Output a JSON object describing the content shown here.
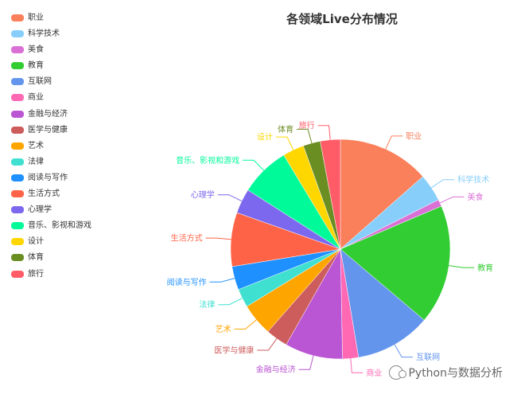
{
  "chart_data": {
    "type": "pie",
    "title": "各领域Live分布情况",
    "categories": [
      "职业",
      "科学技术",
      "美食",
      "教育",
      "互联网",
      "商业",
      "金融与经济",
      "医学与健康",
      "艺术",
      "法律",
      "阅读与写作",
      "生活方式",
      "心理学",
      "音乐、影视和游戏",
      "设计",
      "体育",
      "旅行"
    ],
    "values": [
      13.3,
      4.0,
      1.0,
      17.3,
      11.0,
      2.3,
      8.4,
      3.2,
      4.7,
      2.7,
      3.4,
      7.8,
      3.6,
      7.2,
      3.1,
      2.5,
      2.9
    ],
    "colors": [
      "#fa7f5b",
      "#87cefa",
      "#da70d6",
      "#32cd32",
      "#6495ed",
      "#ff69b4",
      "#ba55d3",
      "#cd5c5c",
      "#ffa500",
      "#40e0d0",
      "#1e90ff",
      "#ff6347",
      "#7b68ee",
      "#00fa9a",
      "#ffd700",
      "#6b8e23",
      "#ff5c68"
    ],
    "legend_position": "left"
  },
  "watermark": {
    "text": "Python与数据分析",
    "icon": "wechat-icon"
  }
}
